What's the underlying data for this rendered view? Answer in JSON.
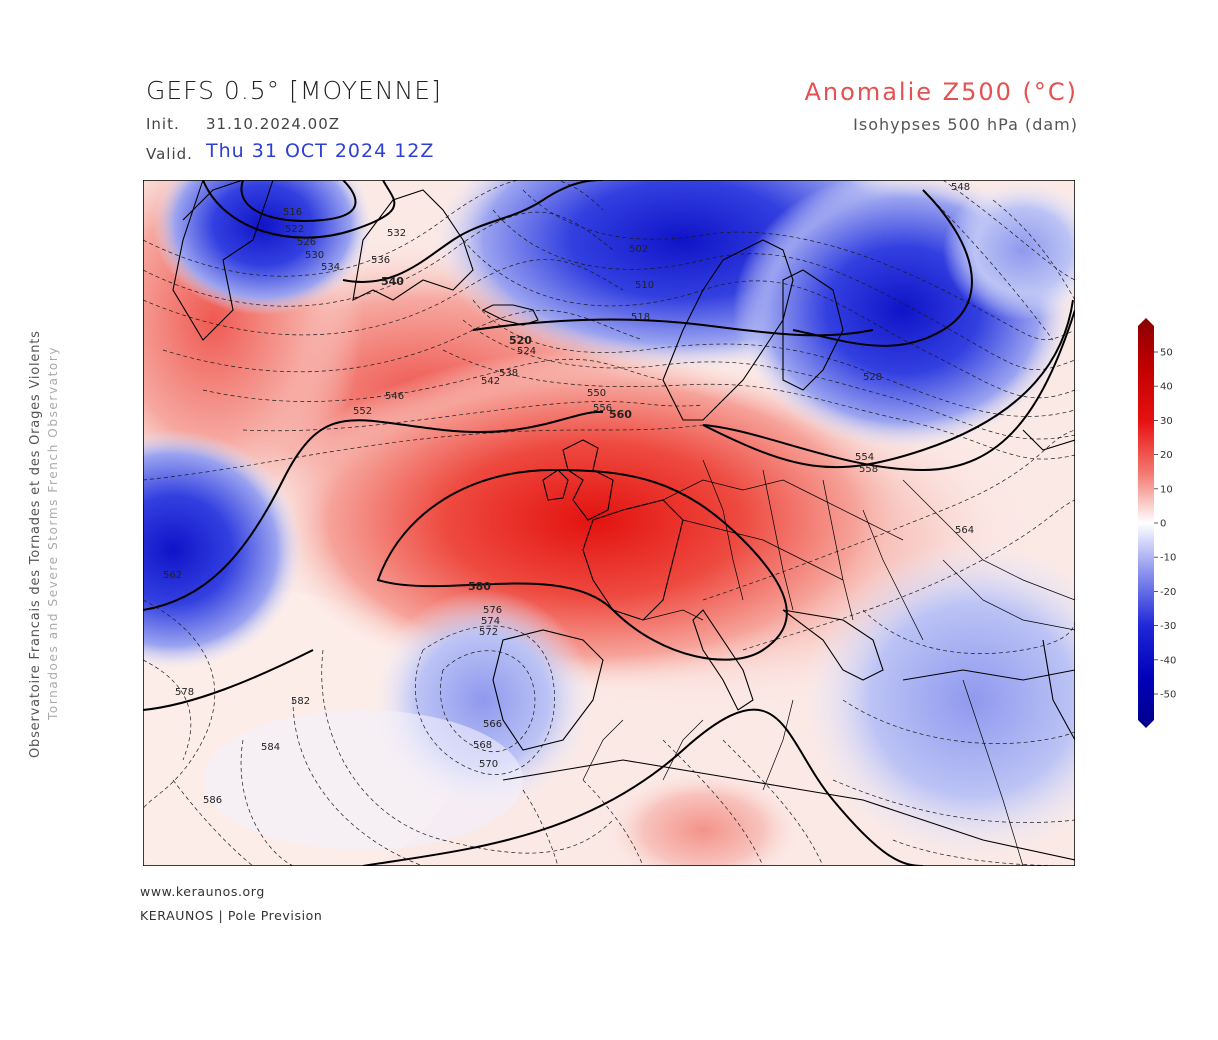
{
  "header": {
    "title": "GEFS 0.5° [MOYENNE]",
    "init_label": "Init.",
    "init_value": "31.10.2024.00Z",
    "valid_label": "Valid.",
    "valid_value": "Thu 31 OCT 2024 12Z",
    "parameter": "Anomalie Z500 (°C)",
    "parameter_sub": "Isohypses 500 hPa (dam)"
  },
  "side_text": {
    "line1": "Observatoire Francais des Tornades et des Orages Violents",
    "line2": "Tornadoes and Severe Storms French Observatory"
  },
  "footer": {
    "url": "www.keraunos.org",
    "credit": "KERAUNOS | Pole Prevision"
  },
  "colorbar": {
    "ticks": [
      "50",
      "40",
      "30",
      "20",
      "10",
      "0",
      "-10",
      "-20",
      "-30",
      "-40",
      "-50"
    ],
    "color_top": "#8b0000",
    "color_zero": "#ffffff",
    "color_bottom": "#00008b"
  },
  "contour_labels": [
    "516",
    "522",
    "526",
    "530",
    "534",
    "532",
    "536",
    "540",
    "546",
    "548",
    "552",
    "502",
    "510",
    "518",
    "520",
    "524",
    "528",
    "542",
    "538",
    "550",
    "554",
    "556",
    "558",
    "560",
    "562",
    "580",
    "576",
    "574",
    "572",
    "570",
    "568",
    "566",
    "564",
    "582",
    "584",
    "586",
    "578"
  ],
  "colors": {
    "warm_anomaly": "#e8201c",
    "cold_anomaly": "#2a36d8",
    "title_blue": "#2d3fd6",
    "param_red": "#e55050"
  }
}
